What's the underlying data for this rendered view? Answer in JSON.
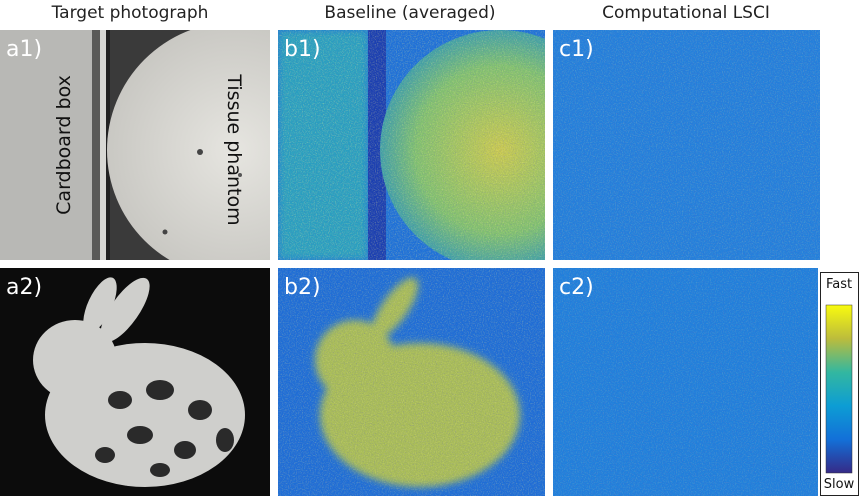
{
  "columns": [
    {
      "title": "Target photograph"
    },
    {
      "title": "Baseline (averaged)"
    },
    {
      "title": "Computational LSCI"
    }
  ],
  "panels": [
    {
      "label": "a1)"
    },
    {
      "label": "a2)"
    },
    {
      "label": "b1)"
    },
    {
      "label": "b2)"
    },
    {
      "label": "c1)"
    },
    {
      "label": "c2)"
    }
  ],
  "annotations": {
    "left": "Cardboard box",
    "right": "Tissue phantom"
  },
  "colorbar": {
    "top": "Fast",
    "bottom": "Slow"
  }
}
